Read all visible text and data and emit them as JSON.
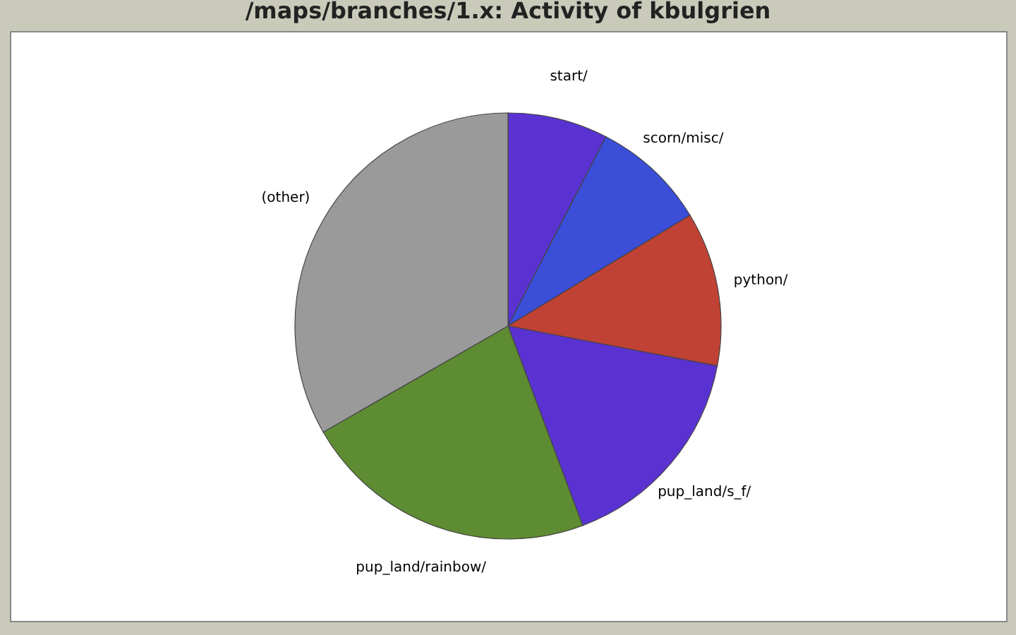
{
  "chart_data": {
    "type": "pie",
    "title": "/maps/branches/1.x: Activity of kbulgrien",
    "categories": [
      "start/",
      "scorn/misc/",
      "python/",
      "pup_land/s_f/",
      "pup_land/rainbow/",
      "(other)"
    ],
    "values": [
      7.6,
      8.7,
      11.7,
      16.3,
      22.4,
      33.3
    ],
    "colors": [
      "#5a32d2",
      "#3a4ed8",
      "#c04234",
      "#5a32d2",
      "#5e8c32",
      "#9a9a9a"
    ],
    "legend": false
  }
}
